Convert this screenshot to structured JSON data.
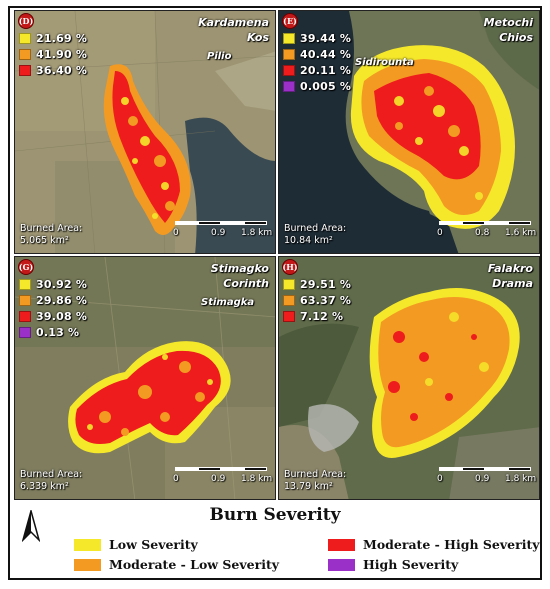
{
  "legend": {
    "title": "Burn Severity",
    "items": [
      {
        "label": "Low Severity",
        "color": "#f5e82b"
      },
      {
        "label": "Moderate - Low Severity",
        "color": "#f39a22"
      },
      {
        "label": "Moderate - High Severity",
        "color": "#ee1c1c"
      },
      {
        "label": "High Severity",
        "color": "#9b30c8"
      }
    ]
  },
  "panels": [
    {
      "id": "D",
      "letter": "(D)",
      "site": "Kardamena",
      "region": "Kos",
      "place": "Pilio",
      "stats": [
        {
          "pct": "21.69 %",
          "color": "#f5e82b"
        },
        {
          "pct": "41.90 %",
          "color": "#f39a22"
        },
        {
          "pct": "36.40 %",
          "color": "#ee1c1c"
        }
      ],
      "burned_label": "Burned Area:",
      "burned_value": "5.065 km²",
      "scale": [
        "0",
        "0.9",
        "1.8 km"
      ]
    },
    {
      "id": "E",
      "letter": "(E)",
      "site": "Metochi",
      "region": "Chios",
      "place": "Sidirounta",
      "stats": [
        {
          "pct": "39.44 %",
          "color": "#f5e82b"
        },
        {
          "pct": "40.44 %",
          "color": "#f39a22"
        },
        {
          "pct": "20.11 %",
          "color": "#ee1c1c"
        },
        {
          "pct": "0.005 %",
          "color": "#9b30c8"
        }
      ],
      "burned_label": "Burned Area:",
      "burned_value": "10.84 km²",
      "scale": [
        "0",
        "0.8",
        "1.6 km"
      ]
    },
    {
      "id": "G",
      "letter": "(G)",
      "site": "Stimagko",
      "region": "Corinth",
      "place": "Stimagka",
      "stats": [
        {
          "pct": "30.92 %",
          "color": "#f5e82b"
        },
        {
          "pct": "29.86 %",
          "color": "#f39a22"
        },
        {
          "pct": "39.08 %",
          "color": "#ee1c1c"
        },
        {
          "pct": "0.13 %",
          "color": "#9b30c8"
        }
      ],
      "burned_label": "Burned Area:",
      "burned_value": "6.339 km²",
      "scale": [
        "0",
        "0.9",
        "1.8 km"
      ]
    },
    {
      "id": "H",
      "letter": "(H)",
      "site": "Falakro",
      "region": "Drama",
      "place": "",
      "stats": [
        {
          "pct": "29.51 %",
          "color": "#f5e82b"
        },
        {
          "pct": "63.37 %",
          "color": "#f39a22"
        },
        {
          "pct": "7.12 %",
          "color": "#ee1c1c"
        }
      ],
      "burned_label": "Burned Area:",
      "burned_value": "13.79 km²",
      "scale": [
        "0",
        "0.9",
        "1.8 km"
      ]
    }
  ]
}
